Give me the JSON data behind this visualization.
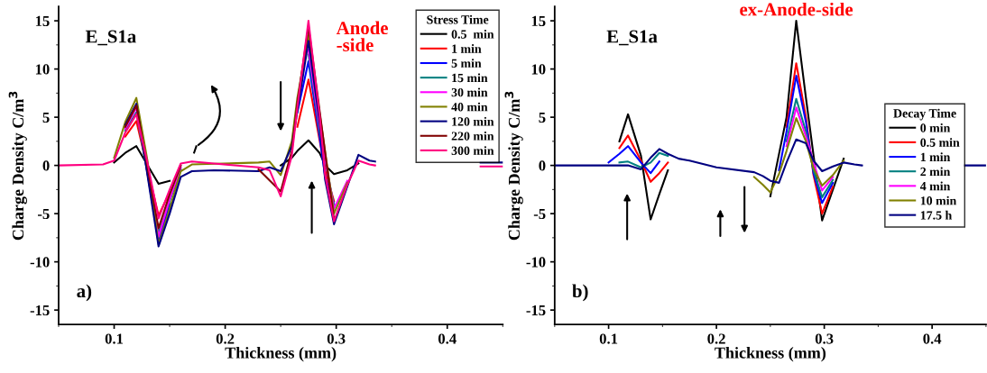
{
  "chart_data": [
    {
      "type": "line",
      "xlabel": "Thickness (mm)",
      "ylabel": "Charge Density C/m$^{3}$",
      "legend_title": "Stress Time",
      "legend": "top right",
      "grid": false,
      "marker": "none",
      "line_style": "solid",
      "annotations": [
        "E_S1a",
        "a)",
        "Anode\n-side"
      ],
      "xlim": [
        0.05,
        0.45
      ],
      "xticks": [
        0.1,
        0.2,
        0.3,
        0.4
      ],
      "ylim": [
        -16.5,
        16.5
      ],
      "yticks": [
        -15,
        -10,
        -5,
        0,
        5,
        10,
        15
      ],
      "x": [
        0.05,
        0.09,
        0.1,
        0.11,
        0.12,
        0.13,
        0.14,
        0.15,
        0.16,
        0.17,
        0.19,
        0.23,
        0.24,
        0.25,
        0.26,
        0.265,
        0.275,
        0.285,
        0.29,
        0.298,
        0.31,
        0.32,
        0.33,
        0.335,
        0.38,
        0.43,
        0.45
      ],
      "series": [
        {
          "name": "0.5  min",
          "color": "#000000",
          "x": [
            0.1,
            0.11,
            0.12,
            0.14,
            0.15,
            0.2,
            0.25,
            0.26,
            0.265,
            0.275,
            0.285,
            0.29,
            0.298,
            0.31,
            0.32
          ],
          "values": [
            0.3,
            1.3,
            2.0,
            -1.9,
            -1.6,
            null,
            0,
            0.8,
            1.5,
            2.6,
            1.3,
            0,
            -0.9,
            -0.5,
            0.2
          ]
        },
        {
          "name": "1 min",
          "color": "#ff0000",
          "x": [
            0.11,
            0.12,
            0.14,
            0.15,
            0.2,
            0.265,
            0.275,
            0.29,
            0.298
          ],
          "values": [
            3.0,
            4.6,
            -5.2,
            -2.8,
            null,
            4.0,
            8.9,
            -0.5,
            -3.7
          ]
        },
        {
          "name": "5 min",
          "color": "#0000ff",
          "x": [
            0.12,
            0.14,
            0.15,
            0.2,
            0.265,
            0.275,
            0.285,
            0.29,
            0.298
          ],
          "values": [
            6.2,
            -7.8,
            -4.0,
            null,
            5.5,
            10.8,
            3.0,
            -1.2,
            -4.0
          ]
        },
        {
          "name": "15 min",
          "color": "#008080",
          "x": [
            0.11,
            0.12,
            0.14,
            0.15,
            0.16,
            0.2,
            0.275,
            0.285,
            0.298
          ],
          "values": [
            3.6,
            5.5,
            -7.0,
            -3.7,
            -0.4,
            null,
            11.5,
            3.5,
            -4.2
          ]
        },
        {
          "name": "30 min",
          "color": "#ff00ff",
          "x": [
            0.11,
            0.12,
            0.14,
            0.15,
            0.16,
            0.2,
            0.275,
            0.285,
            0.298,
            0.31
          ],
          "values": [
            3.8,
            6.0,
            -7.4,
            -3.5,
            -0.2,
            null,
            12.0,
            4.0,
            -4.5,
            -1.6
          ]
        },
        {
          "name": "40 min",
          "color": "#808000",
          "x": [
            0.1,
            0.11,
            0.12,
            0.13,
            0.14,
            0.15,
            0.16,
            0.17,
            0.23,
            0.24,
            0.25,
            0.26,
            0.265,
            0.275,
            0.298,
            0.31
          ],
          "values": [
            0.8,
            4.5,
            7.0,
            0.5,
            -8.2,
            -4.5,
            -0.6,
            0.1,
            0.3,
            0.4,
            -1.0,
            2.5,
            7.0,
            13.5,
            -5.0,
            -1.8
          ]
        },
        {
          "name": "120 min",
          "color": "#000080",
          "x": [
            0.11,
            0.12,
            0.14,
            0.15,
            0.16,
            0.17,
            0.19,
            0.23,
            0.24,
            0.25,
            0.26,
            0.275,
            0.285,
            0.29,
            0.298,
            0.32,
            0.33,
            0.335,
            0.38,
            0.43,
            0.45
          ],
          "values": [
            4.2,
            6.4,
            -8.4,
            -5.0,
            -1.2,
            -0.6,
            -0.5,
            -0.6,
            -0.2,
            -0.6,
            2.0,
            12.9,
            4.5,
            -1.5,
            -6.1,
            1.1,
            0.5,
            0.4,
            null,
            0.3,
            0.3
          ]
        },
        {
          "name": "220 min",
          "color": "#800000",
          "x": [
            0.11,
            0.12,
            0.14,
            0.15,
            0.16,
            0.2,
            0.23,
            0.25,
            0.26,
            0.265,
            0.275,
            0.298
          ],
          "values": [
            4.0,
            6.2,
            -6.5,
            -3.0,
            0,
            null,
            -0.4,
            -2.7,
            1.5,
            6.5,
            14.4,
            -5.6
          ]
        },
        {
          "name": "300 min",
          "color": "#ff0080",
          "values": [
            0,
            0.1,
            0.5,
            3.4,
            5.3,
            0.3,
            -5.5,
            -2.5,
            0.2,
            0.4,
            0.2,
            -0.2,
            -0.5,
            -3.2,
            1.0,
            6.0,
            15.0,
            5.2,
            -1.0,
            -5.8,
            -2.0,
            0.5,
            0.1,
            0,
            null,
            -0.1,
            -0.1
          ]
        }
      ]
    },
    {
      "type": "line",
      "xlabel": "Thickness (mm)",
      "ylabel": "Charge Density C/m$^{3}$",
      "legend_title": "Decay Time",
      "legend": "right",
      "grid": false,
      "marker": "none",
      "line_style": "solid",
      "annotations": [
        "E_S1a",
        "b)",
        "ex-Anode-side"
      ],
      "xlim": [
        0.05,
        0.45
      ],
      "xticks": [
        0.1,
        0.2,
        0.3,
        0.4
      ],
      "ylim": [
        -16.5,
        16.5
      ],
      "yticks": [
        -15,
        -10,
        -5,
        0,
        5,
        10,
        15
      ],
      "x": [
        0.05,
        0.09,
        0.1,
        0.11,
        0.118,
        0.13,
        0.139,
        0.147,
        0.155,
        0.165,
        0.175,
        0.2,
        0.235,
        0.243,
        0.25,
        0.258,
        0.265,
        0.274,
        0.283,
        0.29,
        0.298,
        0.308,
        0.318,
        0.328,
        0.335,
        0.38,
        0.43,
        0.45
      ],
      "series": [
        {
          "name": "0 min",
          "color": "#000000",
          "x": [
            0.11,
            0.118,
            0.13,
            0.139,
            0.147,
            0.155,
            0.2,
            0.25,
            0.265,
            0.274,
            0.283,
            0.298,
            0.308,
            0.318
          ],
          "values": [
            2.5,
            5.3,
            1.0,
            -5.6,
            -3.0,
            -0.5,
            null,
            -3.2,
            5.0,
            15.0,
            7.0,
            -5.7,
            -2.5,
            0.7
          ]
        },
        {
          "name": "0.5 min",
          "color": "#ff0000",
          "x": [
            0.11,
            0.118,
            0.13,
            0.139,
            0.147,
            0.155,
            0.2,
            0.265,
            0.274,
            0.283,
            0.29,
            0.298,
            0.308
          ],
          "values": [
            1.8,
            3.1,
            0.5,
            -1.7,
            -0.8,
            0.3,
            null,
            4.0,
            10.6,
            5.0,
            -1.0,
            -5.0,
            -2.2
          ]
        },
        {
          "name": "1 min",
          "color": "#0000ff",
          "x": [
            0.1,
            0.11,
            0.118,
            0.13,
            0.139,
            0.147,
            0.2,
            0.258,
            0.265,
            0.274,
            0.283,
            0.29,
            0.298,
            0.308
          ],
          "values": [
            0.3,
            1.2,
            2.0,
            0.3,
            -0.8,
            0.4,
            null,
            -0.5,
            3.5,
            9.3,
            4.5,
            -0.8,
            -3.9,
            -1.8
          ]
        },
        {
          "name": "2 min",
          "color": "#008080",
          "x": [
            0.11,
            0.118,
            0.13,
            0.139,
            0.147,
            0.155,
            0.2,
            0.265,
            0.274,
            0.283,
            0.29,
            0.298,
            0.308
          ],
          "values": [
            0.3,
            0.4,
            -0.2,
            0.3,
            1.3,
            1.0,
            null,
            2.5,
            6.9,
            3.5,
            -0.5,
            -3.3,
            -1.5
          ]
        },
        {
          "name": "4 min",
          "color": "#ff00ff",
          "x": [
            0.265,
            0.274,
            0.283,
            0.298,
            0.308
          ],
          "values": [
            2.0,
            6.0,
            3.0,
            -2.6,
            -1.2
          ]
        },
        {
          "name": "10 min",
          "color": "#808000",
          "x": [
            0.235,
            0.243,
            0.25,
            0.258,
            0.265,
            0.274,
            0.283,
            0.29,
            0.298,
            0.308,
            0.318
          ],
          "values": [
            -1.2,
            -2.0,
            -2.8,
            -0.9,
            1.5,
            4.9,
            2.5,
            -0.3,
            -2.1,
            -1.0,
            0.5
          ]
        },
        {
          "name": "17.5 h",
          "color": "#000080",
          "values": [
            0,
            0,
            0,
            0,
            0,
            -0.4,
            0.8,
            1.7,
            1.2,
            0.7,
            0.5,
            -0.2,
            -0.7,
            -1.1,
            -1.6,
            -1.8,
            0.3,
            2.7,
            2.3,
            0.5,
            -0.6,
            -0.1,
            0.3,
            0.1,
            0,
            null,
            0,
            0
          ]
        }
      ]
    }
  ]
}
